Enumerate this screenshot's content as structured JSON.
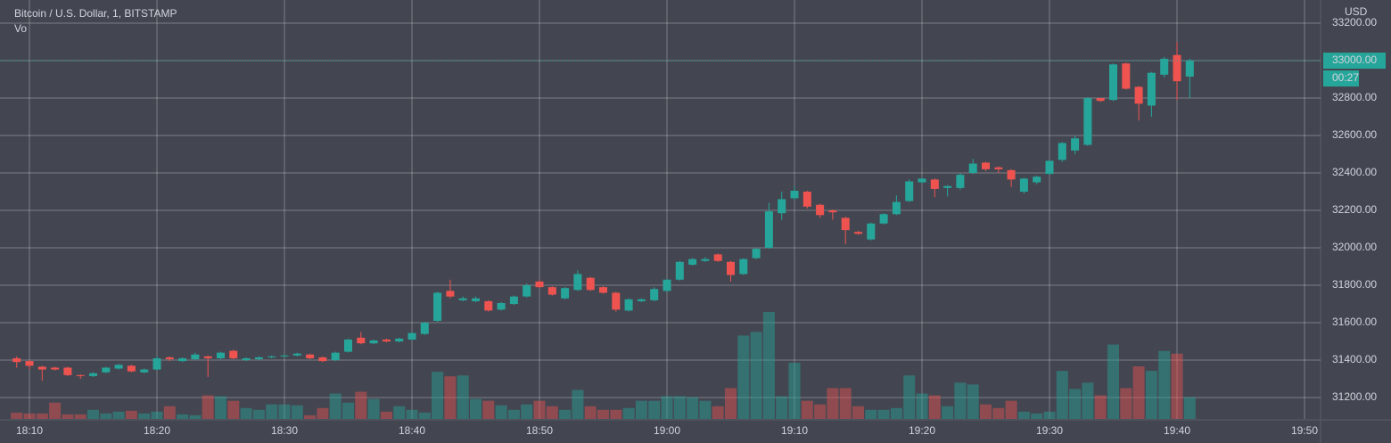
{
  "chart_data": {
    "type": "candlestick",
    "title": "Bitcoin / U.S. Dollar, 1, BITSTAMP",
    "volume_label": "Vo",
    "currency": "USD",
    "countdown": "00:27",
    "last_price": {
      "value": 33000,
      "label": "33000.00"
    },
    "up_color": "#26a69a",
    "down_color": "#ef5350",
    "grid": true,
    "categories": [
      null,
      "18:10",
      null,
      null,
      null,
      null,
      null,
      null,
      null,
      null,
      null,
      "18:20",
      null,
      null,
      null,
      null,
      null,
      null,
      null,
      null,
      null,
      "18:30",
      null,
      null,
      null,
      null,
      null,
      null,
      null,
      null,
      null,
      "18:40",
      null,
      null,
      null,
      null,
      null,
      null,
      null,
      null,
      null,
      "18:50",
      null,
      null,
      null,
      null,
      null,
      null,
      null,
      null,
      null,
      "19:00",
      null,
      null,
      null,
      null,
      null,
      null,
      null,
      null,
      null,
      "19:10",
      null,
      null,
      null,
      null,
      null,
      null,
      null,
      null,
      null,
      "19:20",
      null,
      null,
      null,
      null,
      null,
      null,
      null,
      null,
      null,
      "19:30",
      null,
      null,
      null,
      null,
      null,
      null,
      null,
      null,
      null,
      "19:40",
      null,
      null,
      null,
      null,
      null,
      null,
      null,
      null,
      null,
      "19:50"
    ],
    "open": [
      31410,
      31395,
      31365,
      31360,
      31360,
      31320,
      31315,
      31335,
      31355,
      31370,
      31335,
      31350,
      31415,
      31395,
      31405,
      31420,
      31410,
      31450,
      31400,
      31405,
      31415,
      31420,
      31425,
      31430,
      31415,
      31400,
      31445,
      31520,
      31490,
      31510,
      31500,
      31510,
      31540,
      31610,
      31770,
      31720,
      31715,
      31715,
      31670,
      31700,
      31740,
      31820,
      31790,
      31730,
      31775,
      31840,
      31790,
      31760,
      31665,
      31715,
      31720,
      31770,
      31830,
      31910,
      31930,
      31965,
      31925,
      31860,
      31945,
      32000,
      32185,
      32265,
      32300,
      32230,
      32200,
      32160,
      32085,
      32045,
      32130,
      32180,
      32250,
      32350,
      32365,
      32320,
      32320,
      32400,
      32455,
      32430,
      32415,
      32300,
      32350,
      32395,
      32470,
      32520,
      32550,
      32800,
      32790,
      32985,
      32860,
      32760,
      32925,
      33030,
      32915,
      null,
      null,
      null,
      null,
      null,
      null,
      null,
      null,
      null
    ],
    "high": [
      31420,
      31400,
      31370,
      31365,
      31365,
      31325,
      31335,
      31365,
      31380,
      31375,
      31355,
      31420,
      31420,
      31415,
      31440,
      31425,
      31445,
      31455,
      31415,
      31420,
      31425,
      31430,
      31440,
      31435,
      31420,
      31445,
      31515,
      31550,
      31510,
      31515,
      31520,
      31550,
      31605,
      31765,
      31830,
      31740,
      31740,
      31720,
      31710,
      31745,
      31810,
      31830,
      31795,
      31790,
      31880,
      31845,
      31795,
      31765,
      31730,
      31730,
      31790,
      31835,
      31930,
      31945,
      31950,
      31970,
      31930,
      31945,
      32000,
      32240,
      32300,
      32330,
      32305,
      32235,
      32205,
      32165,
      32090,
      32135,
      32185,
      32280,
      32365,
      32375,
      32370,
      32335,
      32400,
      32475,
      32460,
      32435,
      32420,
      32375,
      32385,
      32470,
      32565,
      32600,
      32805,
      32800,
      32985,
      32990,
      32865,
      32940,
      33020,
      33100,
      33010,
      null,
      null,
      null,
      null,
      null,
      null,
      null,
      null,
      null
    ],
    "low": [
      31360,
      31350,
      31290,
      31345,
      31315,
      31300,
      31310,
      31330,
      31350,
      31335,
      31330,
      31345,
      31395,
      31390,
      31400,
      31310,
      31405,
      31405,
      31395,
      31400,
      31410,
      31415,
      31420,
      31405,
      31390,
      31395,
      31440,
      31485,
      31485,
      31495,
      31495,
      31505,
      31535,
      31605,
      31730,
      31715,
      31710,
      31660,
      31665,
      31695,
      31735,
      31785,
      31745,
      31725,
      31770,
      31770,
      31755,
      31660,
      31660,
      31710,
      31715,
      31765,
      31825,
      31905,
      31925,
      31925,
      31820,
      31855,
      31940,
      31995,
      32150,
      32255,
      32210,
      32160,
      32150,
      32020,
      32070,
      32040,
      32125,
      32175,
      32245,
      32345,
      32270,
      32275,
      32310,
      32395,
      32410,
      32400,
      32325,
      32290,
      32340,
      32390,
      32460,
      32500,
      32545,
      32780,
      32785,
      32845,
      32680,
      32700,
      32910,
      32790,
      32800,
      null,
      null,
      null,
      null,
      null,
      null,
      null,
      null,
      null
    ],
    "close": [
      31390,
      31370,
      31350,
      31350,
      31320,
      31315,
      31330,
      31360,
      31375,
      31340,
      31350,
      31410,
      31405,
      31410,
      31430,
      31410,
      31440,
      31410,
      31410,
      31415,
      31420,
      31425,
      31435,
      31410,
      31395,
      31440,
      31510,
      31490,
      31505,
      31500,
      31515,
      31545,
      31600,
      31760,
      31740,
      31730,
      31730,
      31665,
      31705,
      31740,
      31800,
      31790,
      31750,
      31785,
      31860,
      31775,
      31760,
      31670,
      31725,
      31725,
      31780,
      31830,
      31925,
      31940,
      31940,
      31930,
      31855,
      31940,
      31995,
      32195,
      32260,
      32305,
      32220,
      32175,
      32190,
      32095,
      32075,
      32130,
      32180,
      32245,
      32355,
      32370,
      32315,
      32330,
      32390,
      32450,
      32420,
      32420,
      32365,
      32370,
      32380,
      32465,
      32560,
      32585,
      32800,
      32785,
      32980,
      32850,
      32770,
      32935,
      33010,
      32890,
      33000,
      null,
      null,
      null,
      null,
      null,
      null,
      null,
      null,
      null
    ],
    "volume": [
      7,
      6,
      6,
      18,
      5,
      5,
      10,
      6,
      8,
      9,
      6,
      8,
      14,
      5,
      4,
      26,
      25,
      20,
      12,
      10,
      16,
      16,
      15,
      4,
      12,
      28,
      18,
      30,
      22,
      8,
      14,
      10,
      7,
      52,
      47,
      48,
      22,
      20,
      15,
      10,
      16,
      20,
      14,
      10,
      32,
      14,
      10,
      10,
      12,
      20,
      20,
      25,
      25,
      24,
      20,
      14,
      34,
      92,
      96,
      118,
      25,
      62,
      20,
      16,
      34,
      34,
      14,
      10,
      10,
      12,
      48,
      28,
      26,
      14,
      40,
      38,
      16,
      12,
      20,
      8,
      6,
      8,
      53,
      33,
      40,
      26,
      82,
      34,
      58,
      53,
      75,
      72,
      24,
      null,
      null,
      null,
      null,
      null,
      null,
      null,
      null,
      null
    ],
    "ylim": [
      31086,
      33324
    ],
    "yticks": [
      {
        "value": 31200,
        "label": "31200.00"
      },
      {
        "value": 31400,
        "label": "31400.00"
      },
      {
        "value": 31600,
        "label": "31600.00"
      },
      {
        "value": 31800,
        "label": "31800.00"
      },
      {
        "value": 32000,
        "label": "32000.00"
      },
      {
        "value": 32200,
        "label": "32200.00"
      },
      {
        "value": 32400,
        "label": "32400.00"
      },
      {
        "value": 32600,
        "label": "32600.00"
      },
      {
        "value": 32800,
        "label": "32800.00"
      },
      {
        "value": 33000,
        "label": "33000.00"
      },
      {
        "value": 33200,
        "label": "33200.00"
      }
    ]
  }
}
